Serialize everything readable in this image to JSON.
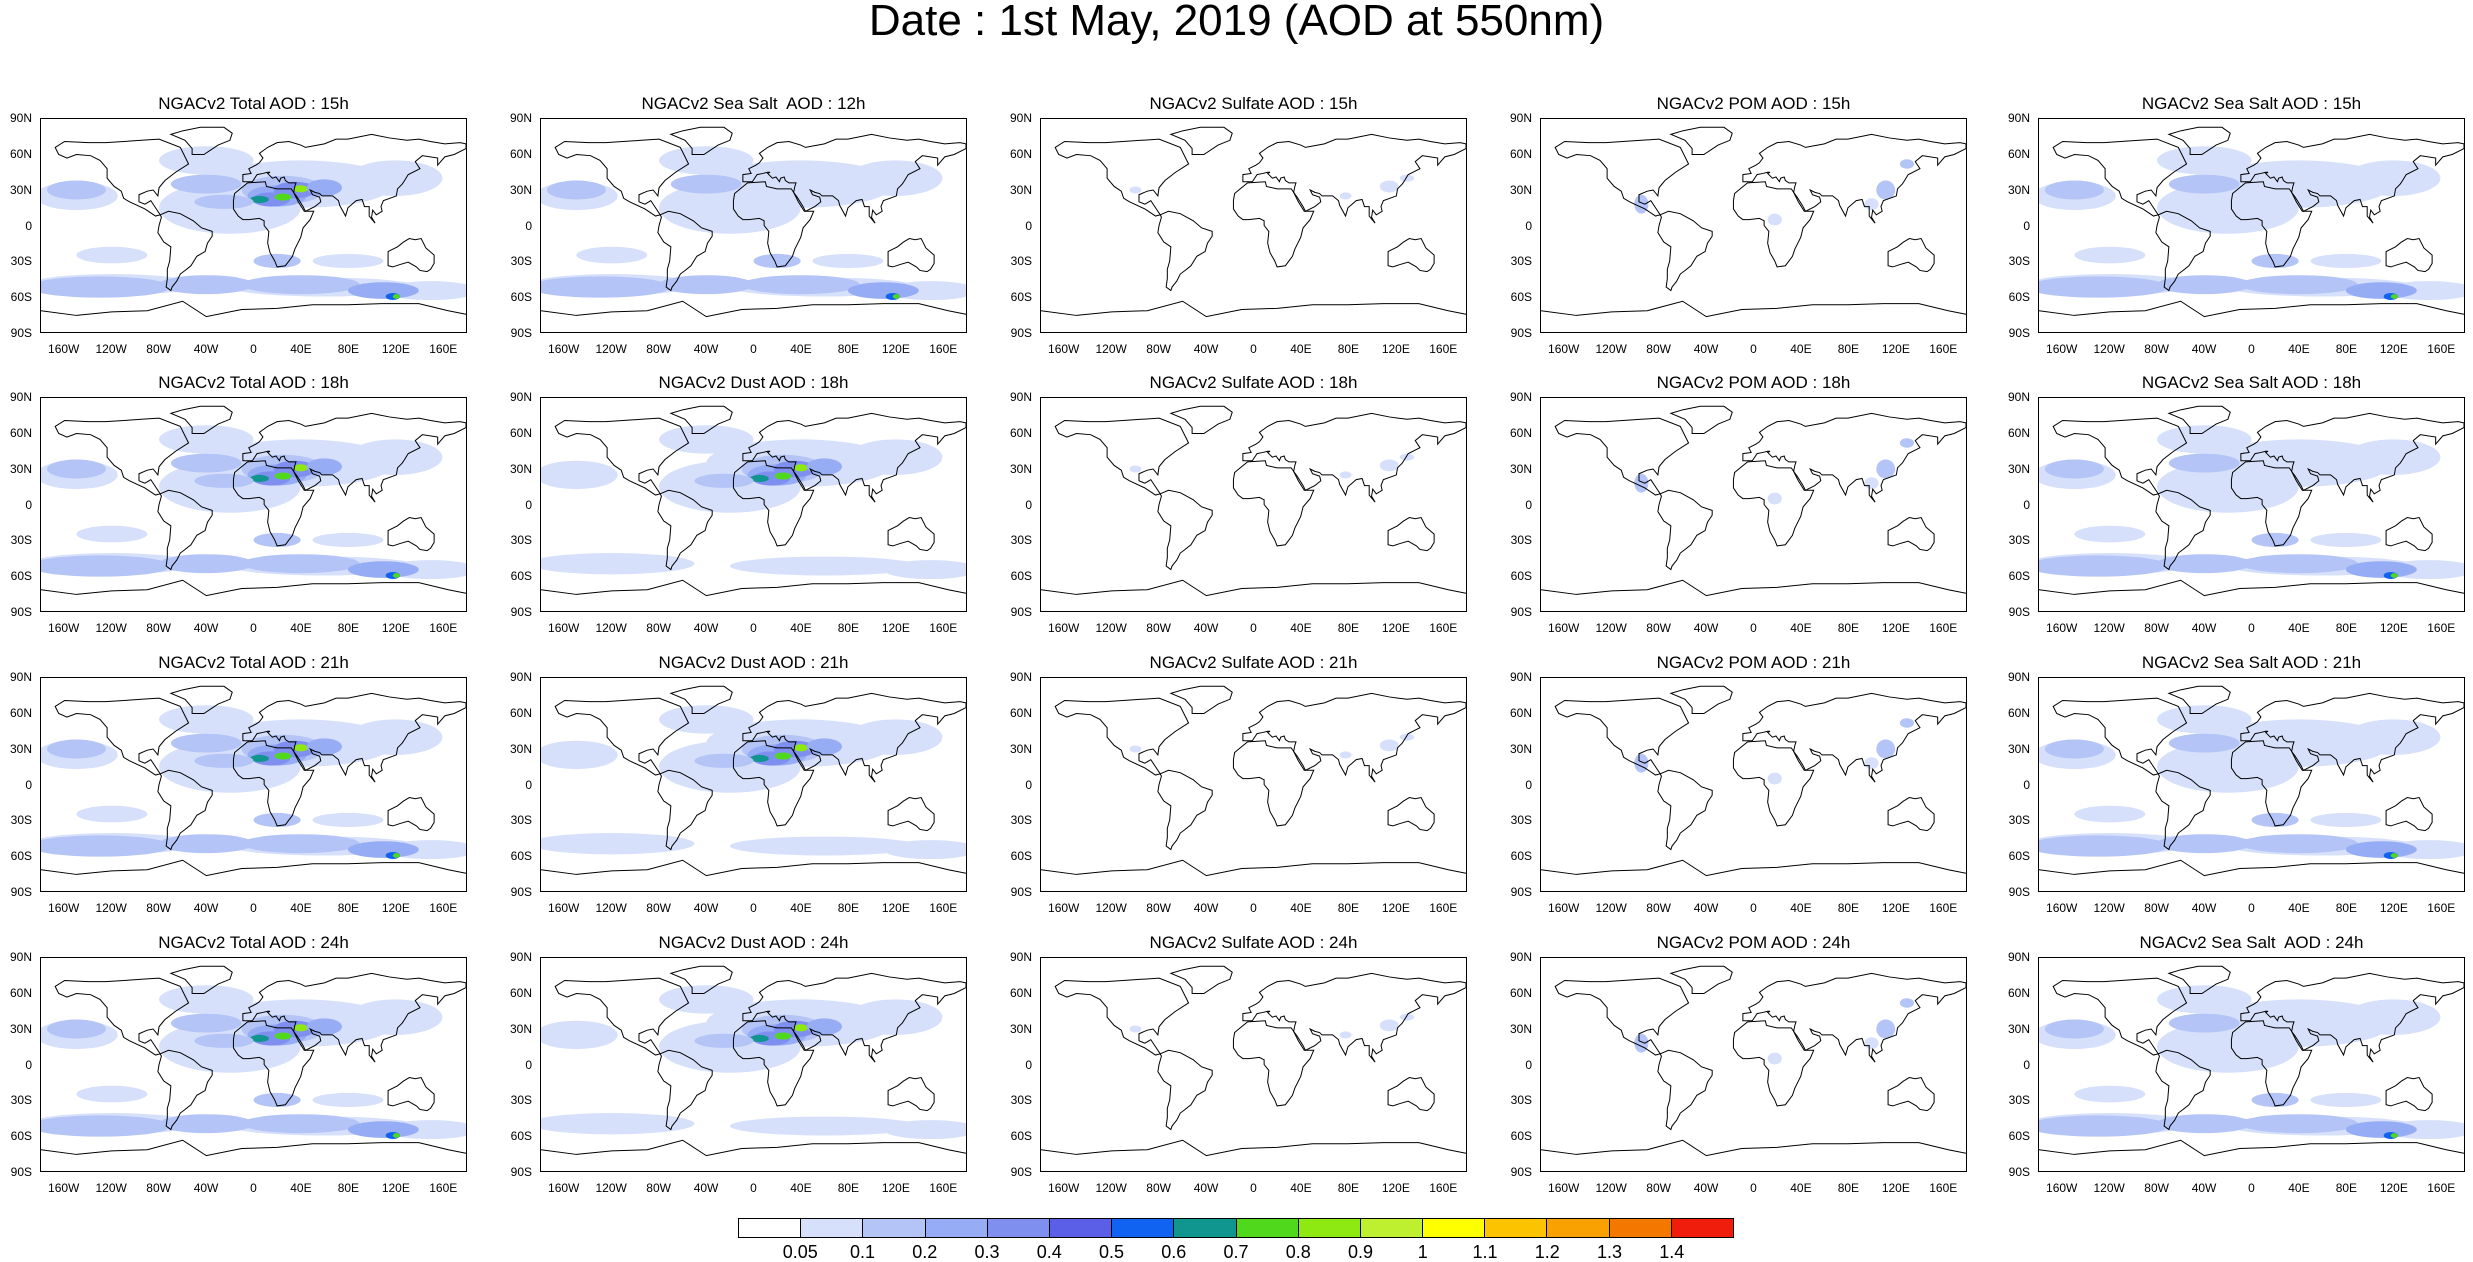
{
  "title": "Date : 1st May, 2019 (AOD at 550nm)",
  "lat_labels": [
    "90N",
    "60N",
    "30N",
    "0",
    "30S",
    "60S",
    "90S"
  ],
  "lon_labels": [
    "160W",
    "120W",
    "80W",
    "40W",
    "0",
    "40E",
    "80E",
    "120E",
    "160E"
  ],
  "panels": [
    [
      "NGACv2 Total AOD : 15h",
      "NGACv2 Sea Salt  AOD : 12h",
      "NGACv2 Sulfate AOD : 15h",
      "NGACv2 POM AOD : 15h",
      "NGACv2 Sea Salt AOD : 15h"
    ],
    [
      "NGACv2 Total AOD : 18h",
      "NGACv2 Dust AOD : 18h",
      "NGACv2 Sulfate AOD : 18h",
      "NGACv2 POM AOD : 18h",
      "NGACv2 Sea Salt AOD : 18h"
    ],
    [
      "NGACv2 Total AOD : 21h",
      "NGACv2 Dust AOD : 21h",
      "NGACv2 Sulfate AOD : 21h",
      "NGACv2 POM AOD : 21h",
      "NGACv2 Sea Salt AOD : 21h"
    ],
    [
      "NGACv2 Total AOD : 24h",
      "NGACv2 Dust AOD : 24h",
      "NGACv2 Sulfate AOD : 24h",
      "NGACv2 POM AOD : 24h",
      "NGACv2 Sea Salt  AOD : 24h"
    ]
  ],
  "colorbar": {
    "labels": [
      "0.05",
      "0.1",
      "0.2",
      "0.3",
      "0.4",
      "0.5",
      "0.6",
      "0.7",
      "0.8",
      "0.9",
      "1",
      "1.1",
      "1.2",
      "1.3",
      "1.4"
    ],
    "colors": [
      "#ffffff",
      "#d6e0fb",
      "#b4c4f6",
      "#96acf4",
      "#7f8ff0",
      "#5b5fe7",
      "#0f63f0",
      "#10958f",
      "#4fd81c",
      "#8ee812",
      "#bff02f",
      "#ffff00",
      "#fcc300",
      "#f9a100",
      "#f47700",
      "#f01c0c"
    ]
  }
}
